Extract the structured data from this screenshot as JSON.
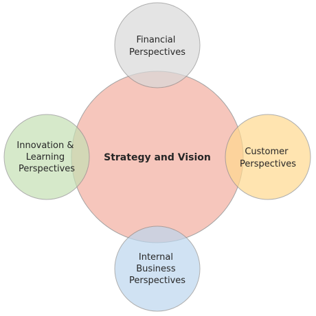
{
  "diagram": {
    "center": {
      "lines": [
        "Strategy and Vision"
      ],
      "fill": "#f4b9ac",
      "stroke": "#8c8c8c"
    },
    "top": {
      "lines": [
        "Financial",
        "Perspectives"
      ],
      "fill": "#d9d9d9",
      "stroke": "#8c8c8c"
    },
    "left": {
      "lines": [
        "Innovation &",
        "Learning",
        "Perspectives"
      ],
      "fill": "#c5e0b4",
      "stroke": "#8c8c8c"
    },
    "right": {
      "lines": [
        "Customer",
        "Perspectives"
      ],
      "fill": "#ffd98f",
      "stroke": "#8c8c8c"
    },
    "bottom": {
      "lines": [
        "Internal",
        "Business",
        "Perspectives"
      ],
      "fill": "#bdd7ee",
      "stroke": "#8c8c8c"
    }
  }
}
